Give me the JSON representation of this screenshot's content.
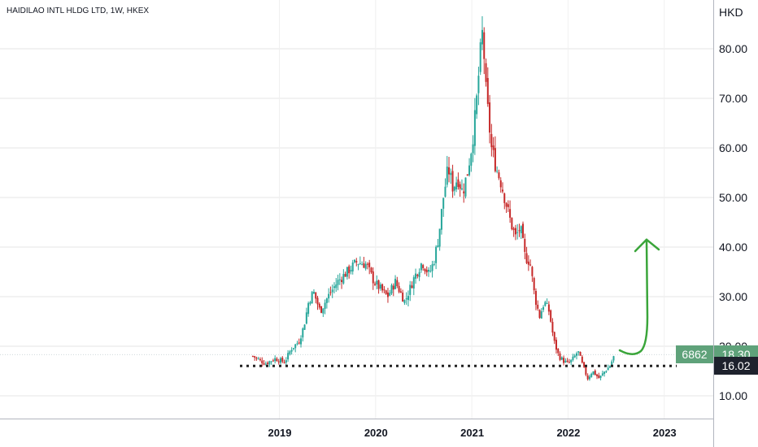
{
  "header": {
    "symbol_title": "HAIDILAO INTL HLDG LTD, 1W, HKEX"
  },
  "price_axis": {
    "currency": "HKD"
  },
  "colors": {
    "up": "#26a69a",
    "down": "#c62828",
    "upper_badge": "#5fa27a",
    "lower_badge": "#1e222d",
    "arrow": "#3aa53a",
    "grid": "#e6e6e6"
  },
  "badges": {
    "left_value": "6862",
    "upper_price": "18.30",
    "lower_price": "16.02"
  },
  "chart_data": {
    "type": "candlestick",
    "title": "HAIDILAO INTL HLDG LTD, 1W, HKEX",
    "ylabel": "HKD",
    "ylim": [
      5,
      88
    ],
    "xlim": [
      2016.3,
      2023.55
    ],
    "y_ticks": [
      10,
      20,
      30,
      40,
      50,
      60,
      70,
      80
    ],
    "y_tick_labels": [
      "10.00",
      "20.00",
      "30.00",
      "40.00",
      "50.00",
      "60.00",
      "70.00",
      "80.00"
    ],
    "x_ticks": [
      2019,
      2020,
      2021,
      2022,
      2023
    ],
    "x_tick_labels": [
      "2019",
      "2020",
      "2021",
      "2022",
      "2023"
    ],
    "grid": true,
    "current_price": 18.3,
    "support_level": 16.02,
    "price_path": [
      [
        2018.72,
        18.0
      ],
      [
        2018.85,
        16.5
      ],
      [
        2018.95,
        17.5
      ],
      [
        2019.05,
        16.8
      ],
      [
        2019.12,
        19.5
      ],
      [
        2019.2,
        21.0
      ],
      [
        2019.25,
        24.0
      ],
      [
        2019.3,
        29.0
      ],
      [
        2019.35,
        31.0
      ],
      [
        2019.42,
        27.0
      ],
      [
        2019.5,
        30.0
      ],
      [
        2019.6,
        33.0
      ],
      [
        2019.7,
        35.0
      ],
      [
        2019.8,
        37.0
      ],
      [
        2019.9,
        36.5
      ],
      [
        2019.98,
        33.0
      ],
      [
        2020.05,
        31.5
      ],
      [
        2020.12,
        30.0
      ],
      [
        2020.2,
        33.0
      ],
      [
        2020.3,
        29.0
      ],
      [
        2020.4,
        34.0
      ],
      [
        2020.48,
        37.0
      ],
      [
        2020.55,
        34.5
      ],
      [
        2020.6,
        37.0
      ],
      [
        2020.65,
        42.0
      ],
      [
        2020.7,
        50.0
      ],
      [
        2020.75,
        56.0
      ],
      [
        2020.8,
        52.0
      ],
      [
        2020.85,
        54.0
      ],
      [
        2020.9,
        51.0
      ],
      [
        2020.95,
        55.0
      ],
      [
        2021.0,
        61.0
      ],
      [
        2021.04,
        68.0
      ],
      [
        2021.08,
        78.0
      ],
      [
        2021.11,
        84.0
      ],
      [
        2021.14,
        72.0
      ],
      [
        2021.2,
        60.0
      ],
      [
        2021.25,
        56.0
      ],
      [
        2021.3,
        53.0
      ],
      [
        2021.4,
        45.0
      ],
      [
        2021.45,
        42.0
      ],
      [
        2021.5,
        44.0
      ],
      [
        2021.55,
        38.0
      ],
      [
        2021.6,
        37.0
      ],
      [
        2021.65,
        30.0
      ],
      [
        2021.7,
        26.0
      ],
      [
        2021.75,
        29.0
      ],
      [
        2021.8,
        27.0
      ],
      [
        2021.85,
        21.0
      ],
      [
        2021.9,
        18.0
      ],
      [
        2021.95,
        17.0
      ],
      [
        2022.0,
        16.5
      ],
      [
        2022.05,
        17.5
      ],
      [
        2022.1,
        19.0
      ],
      [
        2022.15,
        16.0
      ],
      [
        2022.2,
        13.5
      ],
      [
        2022.25,
        15.0
      ],
      [
        2022.32,
        13.5
      ],
      [
        2022.38,
        15.0
      ],
      [
        2022.43,
        16.0
      ],
      [
        2022.48,
        18.3
      ]
    ],
    "annotations": [
      {
        "type": "horizontal_dotted_line",
        "value": 16.02
      },
      {
        "type": "arrow",
        "description": "green curved arrow pointing upward",
        "target_price": 42
      }
    ]
  }
}
